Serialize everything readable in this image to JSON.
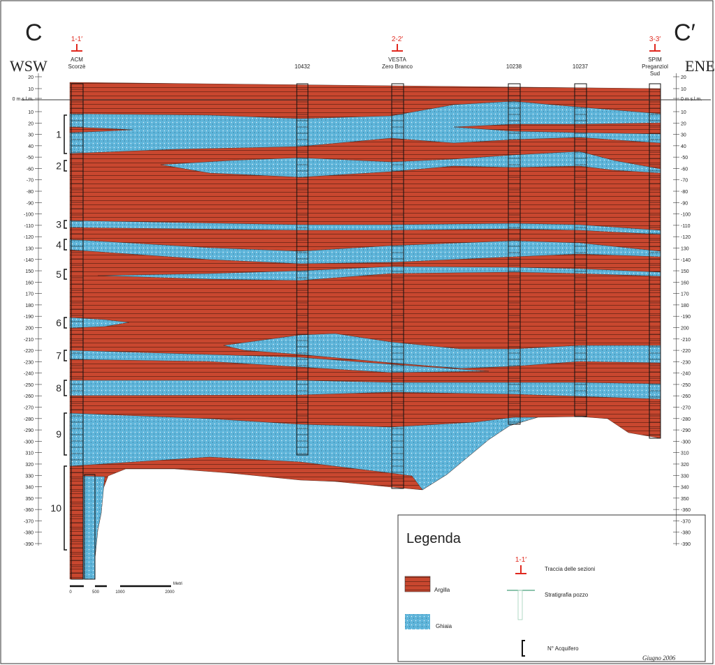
{
  "header": {
    "left_letter": "C",
    "right_letter": "C′",
    "left_direction": "WSW",
    "right_direction": "ENE"
  },
  "sections": [
    "1-1′",
    "2-2′",
    "3-3′"
  ],
  "wells": [
    [
      "ACM",
      "Scorzè"
    ],
    [
      "10432"
    ],
    [
      "VESTA",
      "Zero Branco"
    ],
    [
      "10238"
    ],
    [
      "10237"
    ],
    [
      "SPIM",
      "Preganziol",
      "Sud"
    ]
  ],
  "depth_axis": {
    "upper": [
      "20",
      "10",
      "0 m s.l.m."
    ],
    "lower": [
      "10",
      "20",
      "30",
      "40",
      "-50",
      "-60",
      "-70",
      "-80",
      "-90",
      "-100",
      "-110",
      "-120",
      "130",
      "-140",
      "150",
      "160",
      "170",
      "180",
      "-190",
      "200",
      "-210",
      "-220",
      "-230",
      "-240",
      "-250",
      "-260",
      "-270",
      "-280",
      "-290",
      "-300",
      "310",
      "320",
      "330",
      "340",
      "350",
      "-360",
      "-370",
      "-380",
      "-390"
    ]
  },
  "aquifers": [
    "1",
    "2",
    "3",
    "4",
    "5",
    "6",
    "7",
    "8",
    "9",
    "10"
  ],
  "scale_bar": {
    "ticks": [
      "0",
      "500",
      "1000",
      "2000"
    ],
    "unit": "Metri"
  },
  "legend": {
    "title": "Legenda",
    "argilla": "Argilla",
    "ghiaia": "Ghiaia",
    "section_symbol": "1-1′",
    "section_trace": "Traccia delle sezioni",
    "well_log": "Stratigrafia pozzo",
    "aquifer_number": "N° Acquifero"
  },
  "date": "Giugno 2006"
}
